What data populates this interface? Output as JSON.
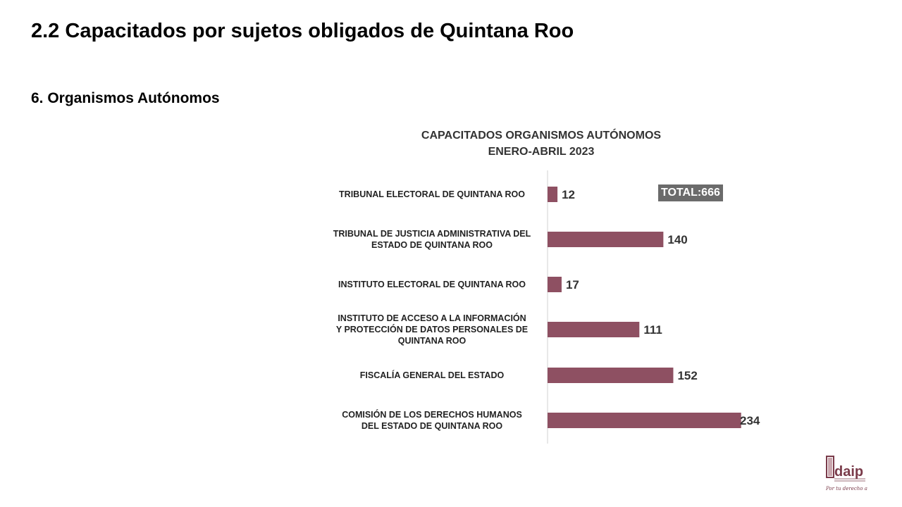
{
  "header": {
    "title": "2.2 Capacitados por sujetos obligados de Quintana Roo",
    "section": "6. Organismos Autónomos"
  },
  "chart_data": {
    "type": "bar",
    "orientation": "horizontal",
    "title": "CAPACITADOS ORGANISMOS AUTÓNOMOS",
    "subtitle": "ENERO-ABRIL 2023",
    "categories": [
      [
        "TRIBUNAL ELECTORAL DE QUINTANA ROO"
      ],
      [
        "TRIBUNAL DE JUSTICIA ADMINISTRATIVA DEL",
        "ESTADO DE QUINTANA ROO"
      ],
      [
        "INSTITUTO ELECTORAL DE QUINTANA ROO"
      ],
      [
        "INSTITUTO DE ACCESO A LA INFORMACIÓN",
        "Y PROTECCIÓN DE DATOS PERSONALES DE",
        "QUINTANA ROO"
      ],
      [
        "FISCALÍA GENERAL DEL ESTADO"
      ],
      [
        "COMISIÓN DE LOS DERECHOS HUMANOS",
        "DEL ESTADO DE QUINTANA ROO"
      ]
    ],
    "values": [
      12,
      140,
      17,
      111,
      152,
      234
    ],
    "total_label": "TOTAL:666",
    "bar_color": "#8e5062",
    "legend": "none",
    "grid": false
  },
  "logo": {
    "name": "idaip",
    "tagline": "Por tu derecho a saber",
    "color": "#7a3b4a"
  }
}
